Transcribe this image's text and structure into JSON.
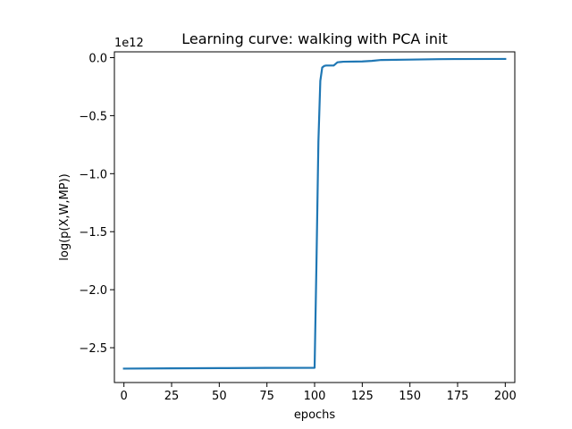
{
  "chart_data": {
    "type": "line",
    "title": "Learning curve: walking with PCA init",
    "xlabel": "epochs",
    "ylabel": "log(p(X,W,MP))",
    "y_offset_text": "1e12",
    "y_scale_factor": 1000000000000.0,
    "xlim": [
      -5,
      205
    ],
    "ylim": [
      -2800000000000.0,
      50000000000.0
    ],
    "x_ticks": [
      0,
      25,
      50,
      75,
      100,
      125,
      150,
      175,
      200
    ],
    "x_tick_labels": [
      "0",
      "25",
      "50",
      "75",
      "100",
      "125",
      "150",
      "175",
      "200"
    ],
    "y_ticks": [
      -2500000000000.0,
      -2000000000000.0,
      -1500000000000.0,
      -1000000000000.0,
      -500000000000.0,
      0.0
    ],
    "y_tick_labels": [
      "−2.5",
      "−2.0",
      "−1.5",
      "−1.0",
      "−0.5",
      "0.0"
    ],
    "grid": false,
    "series": [
      {
        "color": "#1f77b4",
        "x": [
          0,
          25,
          50,
          75,
          100,
          101,
          102,
          103,
          104,
          105,
          106,
          110,
          112,
          115,
          125,
          130,
          135,
          150,
          165,
          175,
          200
        ],
        "y": [
          -2680000000000.0,
          -2678000000000.0,
          -2676000000000.0,
          -2674000000000.0,
          -2673000000000.0,
          -1750000000000.0,
          -720000000000.0,
          -200000000000.0,
          -85000000000.0,
          -72000000000.0,
          -68000000000.0,
          -68000000000.0,
          -40000000000.0,
          -35000000000.0,
          -33000000000.0,
          -28000000000.0,
          -20000000000.0,
          -17000000000.0,
          -13000000000.0,
          -12000000000.0,
          -11000000000.0
        ]
      }
    ]
  }
}
